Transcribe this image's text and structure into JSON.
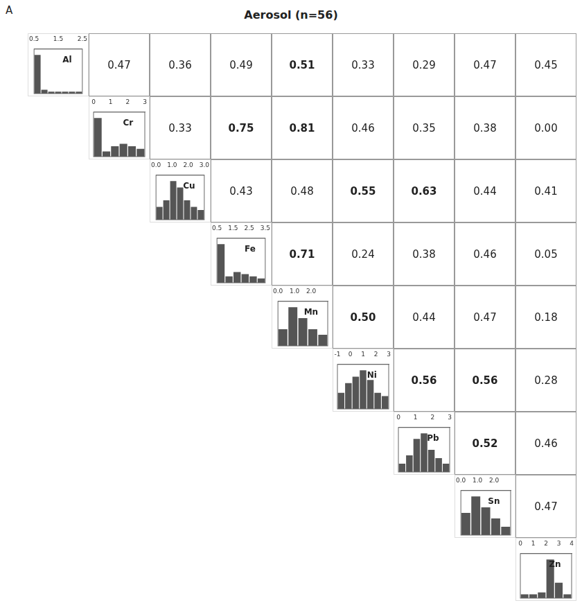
{
  "chart_data": [
    {
      "type": "correlation_matrix",
      "title": "Aerosol (n=56)",
      "annotations": [
        "A"
      ],
      "values": [
        [
          null,
          0.47,
          0.36,
          0.49,
          0.51,
          0.33,
          0.29,
          0.47,
          0.45
        ],
        [
          null,
          null,
          0.33,
          0.75,
          0.81,
          0.46,
          0.35,
          0.38,
          0
        ],
        [
          null,
          null,
          null,
          0.43,
          0.48,
          0.55,
          0.63,
          0.44,
          0.41
        ],
        [
          null,
          null,
          null,
          null,
          0.71,
          0.24,
          0.38,
          0.46,
          0.05
        ],
        [
          null,
          null,
          null,
          null,
          null,
          0.5,
          0.44,
          0.47,
          0.18
        ],
        [
          null,
          null,
          null,
          null,
          null,
          null,
          0.56,
          0.56,
          0.28
        ],
        [
          null,
          null,
          null,
          null,
          null,
          null,
          null,
          0.52,
          0.46
        ],
        [
          null,
          null,
          null,
          null,
          null,
          null,
          null,
          null,
          0.47
        ],
        [
          null,
          null,
          null,
          null,
          null,
          null,
          null,
          null,
          null
        ]
      ],
      "value_labels": [
        [
          null,
          "0.47",
          "0.36",
          "0.49",
          "0.51",
          "0.33",
          "0.29",
          "0.47",
          "0.45"
        ],
        [
          null,
          null,
          "0.33",
          "0.75",
          "0.81",
          "0.46",
          "0.35",
          "0.38",
          "0.00"
        ],
        [
          null,
          null,
          null,
          "0.43",
          "0.48",
          "0.55",
          "0.63",
          "0.44",
          "0.41"
        ],
        [
          null,
          null,
          null,
          null,
          "0.71",
          "0.24",
          "0.38",
          "0.46",
          "0.05"
        ],
        [
          null,
          null,
          null,
          null,
          null,
          "0.50",
          "0.44",
          "0.47",
          "0.18"
        ],
        [
          null,
          null,
          null,
          null,
          null,
          null,
          "0.56",
          "0.56",
          "0.28"
        ],
        [
          null,
          null,
          null,
          null,
          null,
          null,
          null,
          "0.52",
          "0.46"
        ],
        [
          null,
          null,
          null,
          null,
          null,
          null,
          null,
          null,
          "0.47"
        ],
        [
          null,
          null,
          null,
          null,
          null,
          null,
          null,
          null,
          null
        ]
      ],
      "bold_threshold": 0.5,
      "data_labels": true
    },
    {
      "type": "histogram",
      "title": "Al",
      "values": [
        20,
        2,
        1,
        1,
        1,
        1,
        1
      ],
      "bins": [
        0.5,
        0.7857142857142857,
        1.0714285714285714,
        1.3571428571428572,
        1.6428571428571428,
        1.9285714285714286,
        2.2142857142857144,
        2.5
      ],
      "color": "#555555",
      "xlim": [
        0.5,
        2.5
      ],
      "xticks": [
        0.5,
        1.5,
        2.5
      ],
      "ylim": [
        0,
        23
      ],
      "tick_labels": "x",
      "grid": false
    },
    {
      "type": "histogram",
      "title": "Cr",
      "values": [
        15,
        2,
        4,
        5,
        4,
        3
      ],
      "bins": [
        0,
        0.5,
        1,
        1.5,
        2,
        2.5,
        3
      ],
      "color": "#555555",
      "xlim": [
        0,
        3
      ],
      "xticks": [
        0,
        1,
        2,
        3
      ],
      "ylim": [
        0,
        17.25
      ],
      "tick_labels": "x",
      "grid": false
    },
    {
      "type": "histogram",
      "title": "Cu",
      "values": [
        4,
        6,
        12,
        10,
        6,
        4,
        3
      ],
      "bins": [
        0,
        0.42857142857142855,
        0.8571428571428571,
        1.2857142857142856,
        1.7142857142857142,
        2.142857142857143,
        2.571428571428571,
        3
      ],
      "color": "#555555",
      "xlim": [
        0,
        3
      ],
      "xticks": [
        {
          "value": 0,
          "label": "0.0"
        },
        {
          "value": 1,
          "label": "1.0"
        },
        {
          "value": 2,
          "label": "2.0"
        },
        {
          "value": 3,
          "label": "3.0"
        }
      ],
      "ylim": [
        0,
        13.8
      ],
      "tick_labels": "x",
      "grid": false
    },
    {
      "type": "histogram",
      "title": "Fe",
      "values": [
        18,
        3,
        5,
        4,
        3,
        2
      ],
      "bins": [
        0.5,
        1,
        1.5,
        2,
        2.5,
        3,
        3.5
      ],
      "color": "#555555",
      "xlim": [
        0.5,
        3.5
      ],
      "xticks": [
        0.5,
        1.5,
        2.5,
        3.5
      ],
      "ylim": [
        0,
        20.7
      ],
      "tick_labels": "x",
      "grid": false
    },
    {
      "type": "histogram",
      "title": "Mn",
      "values": [
        6,
        14,
        10,
        6,
        4
      ],
      "bins": [
        0,
        0.6,
        1.2,
        1.8,
        2.4,
        3
      ],
      "color": "#555555",
      "xlim": [
        0,
        3
      ],
      "xticks": [
        {
          "value": 0,
          "label": "0.0"
        },
        {
          "value": 1,
          "label": "1.0"
        },
        {
          "value": 2,
          "label": "2.0"
        }
      ],
      "ylim": [
        0,
        16.1
      ],
      "tick_labels": "x",
      "grid": false
    },
    {
      "type": "histogram",
      "title": "Ni",
      "values": [
        5,
        8,
        10,
        12,
        9,
        5,
        4
      ],
      "bins": [
        -1,
        -0.42857142857142855,
        0.14285714285714285,
        0.7142857142857143,
        1.2857142857142856,
        1.8571428571428572,
        2.4285714285714284,
        3
      ],
      "color": "#555555",
      "xlim": [
        -1,
        3
      ],
      "xticks": [
        -1,
        0,
        1,
        2,
        3
      ],
      "ylim": [
        0,
        13.8
      ],
      "tick_labels": "x",
      "grid": false
    },
    {
      "type": "histogram",
      "title": "Pb",
      "values": [
        3,
        6,
        12,
        14,
        8,
        5,
        3
      ],
      "bins": [
        0,
        0.42857142857142855,
        0.8571428571428571,
        1.2857142857142856,
        1.7142857142857142,
        2.142857142857143,
        2.571428571428571,
        3
      ],
      "color": "#555555",
      "xlim": [
        0,
        3
      ],
      "xticks": [
        0,
        1,
        2,
        3
      ],
      "ylim": [
        0,
        16.1
      ],
      "tick_labels": "x",
      "grid": false
    },
    {
      "type": "histogram",
      "title": "Sn",
      "values": [
        8,
        14,
        10,
        6,
        3
      ],
      "bins": [
        0,
        0.6,
        1.2,
        1.8,
        2.4,
        3
      ],
      "color": "#555555",
      "xlim": [
        0,
        3
      ],
      "xticks": [
        {
          "value": 0,
          "label": "0.0"
        },
        {
          "value": 1,
          "label": "1.0"
        },
        {
          "value": 2,
          "label": "2.0"
        }
      ],
      "ylim": [
        0,
        16.1
      ],
      "tick_labels": "x",
      "grid": false
    },
    {
      "type": "histogram",
      "title": "Zn",
      "values": [
        2,
        2,
        3,
        20,
        8,
        2
      ],
      "bins": [
        0,
        0.6666666666666666,
        1.3333333333333333,
        2,
        2.6666666666666665,
        3.333333333333333,
        4
      ],
      "color": "#555555",
      "xlim": [
        0,
        4
      ],
      "xticks": [
        0,
        1,
        2,
        3,
        4
      ],
      "ylim": [
        0,
        23
      ],
      "tick_labels": "x",
      "grid": false
    }
  ]
}
